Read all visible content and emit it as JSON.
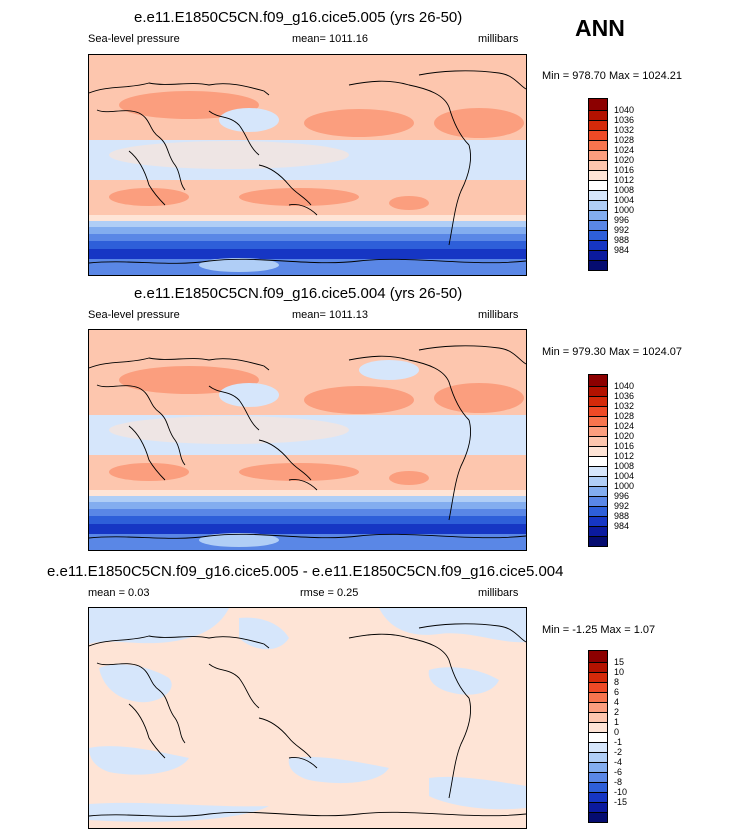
{
  "header": {
    "season": "ANN"
  },
  "panels": [
    {
      "title": "e.e11.E1850C5CN.f09_g16.cice5.005 (yrs 26-50)",
      "left_label": "Sea-level pressure",
      "center_label": "mean= 1011.16",
      "right_label": "millibars",
      "minmax": "Min = 978.70 Max = 1024.21",
      "colorbar": {
        "levels": [
          "1040",
          "1036",
          "1032",
          "1028",
          "1024",
          "1020",
          "1016",
          "1012",
          "1008",
          "1004",
          "1000",
          "996",
          "992",
          "988",
          "984"
        ],
        "colors": [
          "#8c0000",
          "#b31200",
          "#d42a0a",
          "#ee4a26",
          "#f7754e",
          "#fb9e7e",
          "#fdc6ae",
          "#fee4d6",
          "#ffffff",
          "#d6e6fb",
          "#b0cef6",
          "#83adef",
          "#5a87e6",
          "#2e5fd9",
          "#1636c4",
          "#0b1a9e",
          "#050c70"
        ]
      }
    },
    {
      "title": "e.e11.E1850C5CN.f09_g16.cice5.004 (yrs 26-50)",
      "left_label": "Sea-level pressure",
      "center_label": "mean= 1011.13",
      "right_label": "millibars",
      "minmax": "Min = 979.30 Max = 1024.07",
      "colorbar": {
        "levels": [
          "1040",
          "1036",
          "1032",
          "1028",
          "1024",
          "1020",
          "1016",
          "1012",
          "1008",
          "1004",
          "1000",
          "996",
          "992",
          "988",
          "984"
        ],
        "colors": [
          "#8c0000",
          "#b31200",
          "#d42a0a",
          "#ee4a26",
          "#f7754e",
          "#fb9e7e",
          "#fdc6ae",
          "#fee4d6",
          "#ffffff",
          "#d6e6fb",
          "#b0cef6",
          "#83adef",
          "#5a87e6",
          "#2e5fd9",
          "#1636c4",
          "#0b1a9e",
          "#050c70"
        ]
      }
    },
    {
      "title": "e.e11.E1850C5CN.f09_g16.cice5.005 - e.e11.E1850C5CN.f09_g16.cice5.004",
      "left_label": "mean =   0.03",
      "center_label": "rmse =   0.25",
      "right_label": "millibars",
      "minmax": "Min =  -1.25 Max =  1.07",
      "colorbar": {
        "levels": [
          "15",
          "10",
          "8",
          "6",
          "4",
          "2",
          "1",
          "0",
          "-1",
          "-2",
          "-4",
          "-6",
          "-8",
          "-10",
          "-15"
        ],
        "colors": [
          "#8c0000",
          "#b31200",
          "#d42a0a",
          "#ee4a26",
          "#f7754e",
          "#fb9e7e",
          "#fdc6ae",
          "#fee4d6",
          "#ffffff",
          "#d6e6fb",
          "#b0cef6",
          "#83adef",
          "#5a87e6",
          "#2e5fd9",
          "#1636c4",
          "#0b1a9e",
          "#050c70"
        ]
      }
    }
  ]
}
